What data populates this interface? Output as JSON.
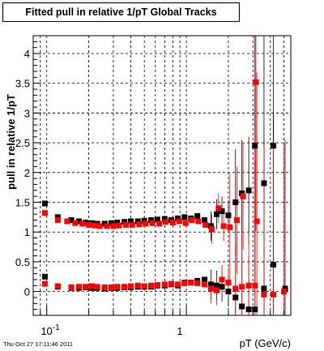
{
  "chart_data": {
    "type": "scatter",
    "title": "Fitted pull in relative 1/pT  Global Tracks",
    "xlabel": "pT (GeV/c)",
    "ylabel": "pull in relative 1/pT",
    "x_scale": "log",
    "xlim": [
      0.08,
      5.6
    ],
    "ylim": [
      -0.4,
      4.3
    ],
    "x_tick_labels": [
      {
        "value": 0.1,
        "base": "10",
        "exp": "-1"
      },
      {
        "value": 1,
        "base": "1",
        "exp": ""
      }
    ],
    "y_ticks": [
      0,
      0.5,
      1,
      1.5,
      2,
      2.5,
      3,
      3.5,
      4
    ],
    "y_tick_labels": [
      "0",
      "0.5",
      "1",
      "1.5",
      "2",
      "2.5",
      "3",
      "3.5",
      "4"
    ],
    "grid": true,
    "series": [
      {
        "color": "#000000",
        "points": [
          {
            "x": 0.097,
            "y": 1.48
          },
          {
            "x": 0.12,
            "y": 1.25
          },
          {
            "x": 0.15,
            "y": 1.2
          },
          {
            "x": 0.17,
            "y": 1.18
          },
          {
            "x": 0.19,
            "y": 1.16
          },
          {
            "x": 0.21,
            "y": 1.15
          },
          {
            "x": 0.23,
            "y": 1.14
          },
          {
            "x": 0.26,
            "y": 1.14
          },
          {
            "x": 0.29,
            "y": 1.15
          },
          {
            "x": 0.32,
            "y": 1.16
          },
          {
            "x": 0.36,
            "y": 1.17
          },
          {
            "x": 0.4,
            "y": 1.18
          },
          {
            "x": 0.45,
            "y": 1.18
          },
          {
            "x": 0.5,
            "y": 1.19
          },
          {
            "x": 0.56,
            "y": 1.2
          },
          {
            "x": 0.62,
            "y": 1.21
          },
          {
            "x": 0.7,
            "y": 1.22
          },
          {
            "x": 0.78,
            "y": 1.2
          },
          {
            "x": 0.87,
            "y": 1.23
          },
          {
            "x": 0.97,
            "y": 1.25
          },
          {
            "x": 1.08,
            "y": 1.23
          },
          {
            "x": 1.2,
            "y": 1.27
          },
          {
            "x": 1.35,
            "y": 1.2
          },
          {
            "x": 1.5,
            "y": 1.1
          },
          {
            "x": 1.65,
            "y": 1.3
          },
          {
            "x": 1.8,
            "y": 1.35
          },
          {
            "x": 2.0,
            "y": 1.28
          },
          {
            "x": 2.25,
            "y": 1.5
          },
          {
            "x": 2.5,
            "y": 1.65
          },
          {
            "x": 2.8,
            "y": 1.7
          },
          {
            "x": 3.1,
            "y": 2.45
          },
          {
            "x": 3.6,
            "y": 1.82
          },
          {
            "x": 4.2,
            "y": 2.45
          },
          {
            "x": 0.097,
            "y": 0.25
          },
          {
            "x": 0.12,
            "y": 0.08
          },
          {
            "x": 0.15,
            "y": 0.06
          },
          {
            "x": 0.17,
            "y": 0.06
          },
          {
            "x": 0.19,
            "y": 0.07
          },
          {
            "x": 0.21,
            "y": 0.06
          },
          {
            "x": 0.23,
            "y": 0.06
          },
          {
            "x": 0.26,
            "y": 0.05
          },
          {
            "x": 0.29,
            "y": 0.06
          },
          {
            "x": 0.32,
            "y": 0.06
          },
          {
            "x": 0.36,
            "y": 0.07
          },
          {
            "x": 0.4,
            "y": 0.07
          },
          {
            "x": 0.45,
            "y": 0.08
          },
          {
            "x": 0.5,
            "y": 0.08
          },
          {
            "x": 0.56,
            "y": 0.08
          },
          {
            "x": 0.62,
            "y": 0.1
          },
          {
            "x": 0.7,
            "y": 0.1
          },
          {
            "x": 0.78,
            "y": 0.12
          },
          {
            "x": 0.87,
            "y": 0.1
          },
          {
            "x": 0.97,
            "y": 0.15
          },
          {
            "x": 1.08,
            "y": 0.15
          },
          {
            "x": 1.2,
            "y": 0.18
          },
          {
            "x": 1.35,
            "y": 0.2
          },
          {
            "x": 1.5,
            "y": 0.12
          },
          {
            "x": 1.65,
            "y": 0.1
          },
          {
            "x": 1.8,
            "y": 0.08
          },
          {
            "x": 2.0,
            "y": 0.0
          },
          {
            "x": 2.25,
            "y": -0.1
          },
          {
            "x": 2.5,
            "y": -0.25
          },
          {
            "x": 2.8,
            "y": -0.3
          },
          {
            "x": 3.1,
            "y": -0.3
          },
          {
            "x": 3.6,
            "y": 0.05
          },
          {
            "x": 4.2,
            "y": 0.45
          },
          {
            "x": 5.1,
            "y": 0.05
          }
        ]
      },
      {
        "color": "#ff0000",
        "points": [
          {
            "x": 0.097,
            "y": 1.32
          },
          {
            "x": 0.12,
            "y": 1.2
          },
          {
            "x": 0.14,
            "y": 1.18
          },
          {
            "x": 0.16,
            "y": 1.15
          },
          {
            "x": 0.18,
            "y": 1.14
          },
          {
            "x": 0.2,
            "y": 1.12
          },
          {
            "x": 0.22,
            "y": 1.11
          },
          {
            "x": 0.24,
            "y": 1.1
          },
          {
            "x": 0.27,
            "y": 1.1
          },
          {
            "x": 0.3,
            "y": 1.1
          },
          {
            "x": 0.33,
            "y": 1.11
          },
          {
            "x": 0.37,
            "y": 1.12
          },
          {
            "x": 0.41,
            "y": 1.12
          },
          {
            "x": 0.46,
            "y": 1.13
          },
          {
            "x": 0.51,
            "y": 1.14
          },
          {
            "x": 0.57,
            "y": 1.15
          },
          {
            "x": 0.64,
            "y": 1.14
          },
          {
            "x": 0.71,
            "y": 1.17
          },
          {
            "x": 0.8,
            "y": 1.16
          },
          {
            "x": 0.89,
            "y": 1.18
          },
          {
            "x": 0.99,
            "y": 1.15
          },
          {
            "x": 1.1,
            "y": 1.2
          },
          {
            "x": 1.22,
            "y": 1.18
          },
          {
            "x": 1.37,
            "y": 1.12
          },
          {
            "x": 1.52,
            "y": 1.05
          },
          {
            "x": 1.7,
            "y": 1.4
          },
          {
            "x": 1.85,
            "y": 1.1
          },
          {
            "x": 2.05,
            "y": 1.08
          },
          {
            "x": 2.3,
            "y": 1.2
          },
          {
            "x": 2.55,
            "y": 1.6
          },
          {
            "x": 3.15,
            "y": 3.52
          },
          {
            "x": 3.2,
            "y": 1.18
          },
          {
            "x": 0.097,
            "y": 0.13
          },
          {
            "x": 0.12,
            "y": 0.09
          },
          {
            "x": 0.15,
            "y": 0.07
          },
          {
            "x": 0.17,
            "y": 0.08
          },
          {
            "x": 0.19,
            "y": 0.08
          },
          {
            "x": 0.21,
            "y": 0.09
          },
          {
            "x": 0.23,
            "y": 0.08
          },
          {
            "x": 0.26,
            "y": 0.07
          },
          {
            "x": 0.29,
            "y": 0.07
          },
          {
            "x": 0.32,
            "y": 0.08
          },
          {
            "x": 0.36,
            "y": 0.08
          },
          {
            "x": 0.4,
            "y": 0.09
          },
          {
            "x": 0.45,
            "y": 0.1
          },
          {
            "x": 0.5,
            "y": 0.09
          },
          {
            "x": 0.56,
            "y": 0.1
          },
          {
            "x": 0.62,
            "y": 0.11
          },
          {
            "x": 0.7,
            "y": 0.12
          },
          {
            "x": 0.78,
            "y": 0.13
          },
          {
            "x": 0.87,
            "y": 0.12
          },
          {
            "x": 0.97,
            "y": 0.14
          },
          {
            "x": 1.08,
            "y": 0.15
          },
          {
            "x": 1.2,
            "y": 0.14
          },
          {
            "x": 1.35,
            "y": 0.12
          },
          {
            "x": 1.5,
            "y": 0.05
          },
          {
            "x": 1.65,
            "y": 0.02
          },
          {
            "x": 1.8,
            "y": 0.2
          },
          {
            "x": 2.0,
            "y": 0.15
          },
          {
            "x": 2.25,
            "y": 0.05
          },
          {
            "x": 2.5,
            "y": 0.08
          },
          {
            "x": 2.8,
            "y": 0.1
          },
          {
            "x": 3.1,
            "y": 0.1
          },
          {
            "x": 3.6,
            "y": -0.05
          },
          {
            "x": 4.2,
            "y": -0.05
          },
          {
            "x": 5.0,
            "y": 0.0
          }
        ]
      }
    ]
  },
  "footer": {
    "timestamp": "Thu Oct 27 17:11:46 2011"
  }
}
